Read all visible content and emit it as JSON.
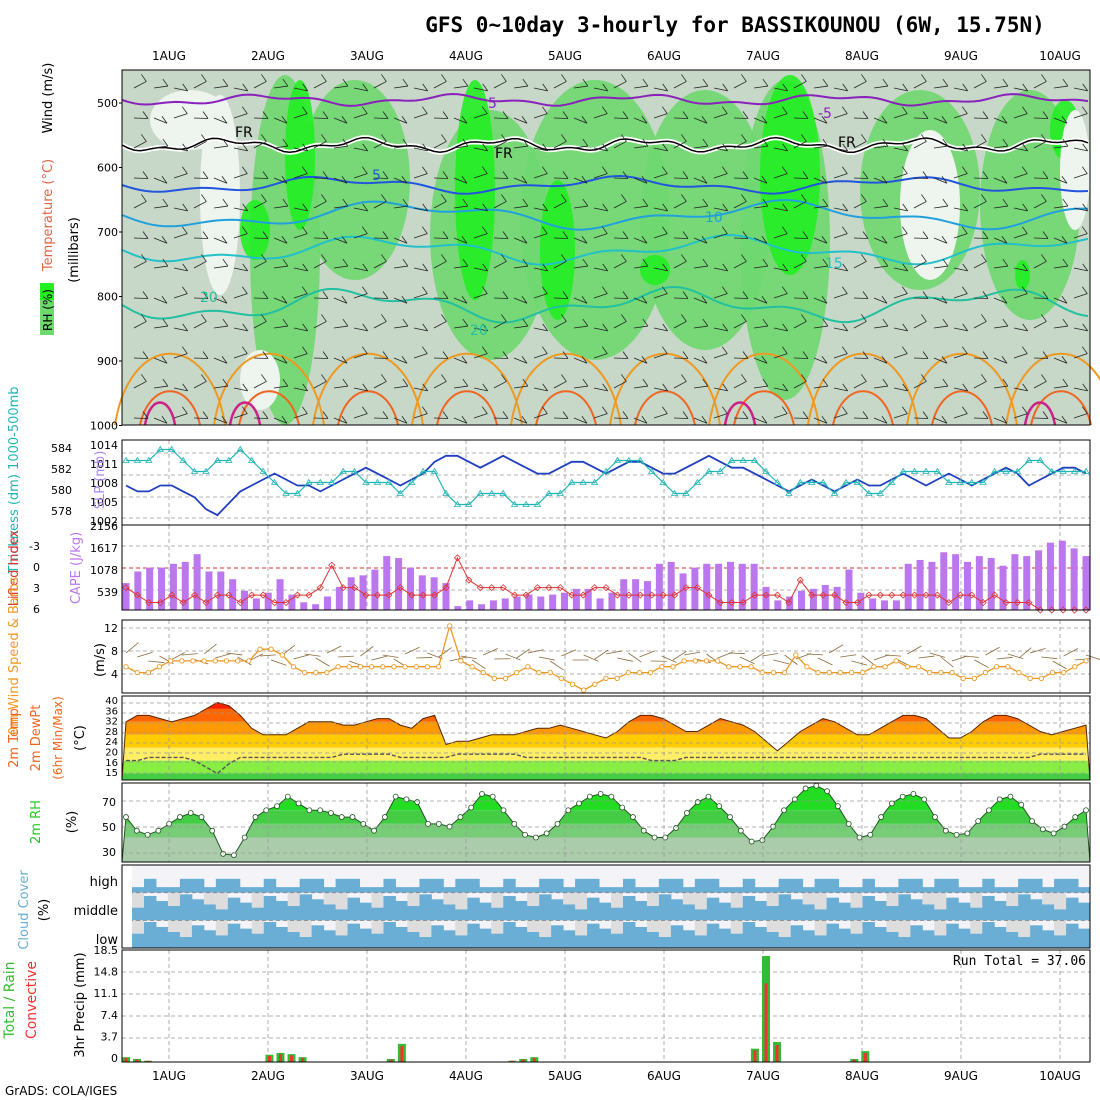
{
  "title": "GFS 0~10day 3-hourly for BASSIKOUNOU (6W, 15.75N)",
  "credit": "GrADS: COLA/IGES",
  "dates": [
    "1AUG",
    "2AUG",
    "3AUG",
    "4AUG",
    "5AUG",
    "6AUG",
    "7AUG",
    "8AUG",
    "9AUG",
    "10AUG"
  ],
  "colors": {
    "rh_light": "#c8d8c8",
    "rh_mid": "#6fd86f",
    "rh_high": "#22ee22",
    "wind_violet": "#8822bb",
    "freezing": "#000000",
    "t5": "#2255dd",
    "t10": "#22a0dd",
    "t15": "#22c0c8",
    "t20": "#22c0a0",
    "t25": "#ee9922",
    "t30": "#ee6622",
    "t35": "#cc2288",
    "slp": "#1f3fbf",
    "thickness": "#22b5b5",
    "lifted": "#dd3333",
    "cape": "#bb77ee",
    "wind10": "#ee9922",
    "barbs": "#8a6a3a",
    "temp_fill": [
      "#ff2200",
      "#ff6600",
      "#ff9900",
      "#ffcc00",
      "#ffee66",
      "#88ee44",
      "#44cc44"
    ],
    "rh2m": "#22cc22",
    "cloud": "#6aaed6",
    "cloud_clear": "#dddddd",
    "precip_total": "#33bb33",
    "precip_conv": "#ee3333"
  },
  "panels": {
    "upper_air": {
      "ylabel_parts": [
        "RH (%)",
        "Temperature (°C)",
        "Wind (m/s)"
      ],
      "ylabel_units": "(millibars)",
      "yticks": [
        "500",
        "600",
        "700",
        "800",
        "900",
        "1000"
      ],
      "contour_labels": [
        "5",
        "FR",
        "FR",
        "FR",
        "5",
        "10",
        "15",
        "20",
        "20",
        "-5"
      ]
    },
    "slp": {
      "ylabel_left": "Thickness (dm) 1000-500mb",
      "ylabel_right": "SLP (mb)",
      "ticks_left": [
        "584",
        "582",
        "580",
        "578"
      ],
      "ticks_right": [
        "1014",
        "1011",
        "1008",
        "1005",
        "1002"
      ]
    },
    "cape": {
      "ylabel_left": "Lifted Index",
      "ylabel_right": "CAPE (J/kg)",
      "ticks_left": [
        "-3",
        "0",
        "3",
        "6"
      ],
      "ticks_right": [
        "2156",
        "1617",
        "1078",
        "539"
      ]
    },
    "wind10": {
      "ylabel": "10m Wind Speed & Barbs",
      "units": "(m/s)",
      "ticks": [
        "12",
        "8",
        "4"
      ]
    },
    "temp2m": {
      "ylabel": "2m Temp 2m DewPt (6hr Min/Max)",
      "units": "(°C)",
      "ticks": [
        "40",
        "36",
        "32",
        "28",
        "24",
        "20",
        "16",
        "15"
      ]
    },
    "rh2m": {
      "ylabel": "2m RH",
      "units": "(%)",
      "ticks": [
        "70",
        "50",
        "30"
      ]
    },
    "cloud": {
      "ylabel": "Cloud Cover",
      "units": "(%)",
      "levels": [
        "high",
        "middle",
        "low"
      ]
    },
    "precip": {
      "ylabel_left": "Total / Rain",
      "ylabel_conv": "Convective",
      "ylabel": "3hr Precip (mm)",
      "run_total": "Run Total = 37.06",
      "ticks": [
        "18.5",
        "14.8",
        "11.1",
        "7.4",
        "3.7",
        "0"
      ]
    }
  },
  "chart_data": [
    {
      "type": "line",
      "title": "SLP (mb) and 1000-500mb Thickness (dm)",
      "x": "3-hourly steps, 1AUG-10AUG",
      "ylim_slp": [
        1002,
        1015
      ],
      "ylim_thickness": [
        577.5,
        584.5
      ],
      "series": [
        {
          "name": "SLP (mb)",
          "values": [
            1008,
            1007,
            1007,
            1008,
            1008,
            1007,
            1006,
            1004,
            1003,
            1005,
            1007,
            1008,
            1009,
            1010,
            1009,
            1008,
            1008,
            1007,
            1008,
            1009,
            1010,
            1011,
            1010,
            1009,
            1008,
            1009,
            1010,
            1012,
            1013,
            1013,
            1012,
            1011,
            1012,
            1013,
            1012,
            1011,
            1010,
            1010,
            1011,
            1012,
            1012,
            1011,
            1010,
            1011,
            1012,
            1012,
            1011,
            1010,
            1010,
            1011,
            1012,
            1013,
            1012,
            1011,
            1011,
            1010,
            1009,
            1008,
            1007,
            1008,
            1009,
            1008,
            1007,
            1008,
            1009,
            1008,
            1008,
            1009,
            1010,
            1009,
            1008,
            1009,
            1010,
            1009,
            1008,
            1009,
            1010,
            1011,
            1010,
            1008,
            1009,
            1010,
            1011,
            1011,
            1010
          ]
        },
        {
          "name": "Thickness (dm)",
          "values": [
            583,
            583,
            583,
            584,
            584,
            583,
            582,
            582,
            583,
            583,
            584,
            583,
            582,
            581,
            580,
            580,
            581,
            581,
            581,
            582,
            582,
            581,
            581,
            581,
            580,
            581,
            582,
            582,
            580,
            579,
            579,
            580,
            580,
            580,
            579,
            579,
            579,
            580,
            580,
            581,
            581,
            581,
            582,
            583,
            583,
            583,
            582,
            581,
            580,
            580,
            581,
            582,
            582,
            583,
            583,
            583,
            582,
            581,
            580,
            581,
            581,
            581,
            580,
            581,
            581,
            580,
            580,
            581,
            582,
            582,
            582,
            582,
            581,
            581,
            581,
            581,
            582,
            582,
            582,
            583,
            583,
            582,
            582,
            582,
            582
          ]
        }
      ]
    },
    {
      "type": "bar",
      "title": "CAPE (J/kg) and Lifted Index",
      "ylim_cape": [
        0,
        2156
      ],
      "ylim_li": [
        6,
        -5
      ],
      "series": [
        {
          "name": "CAPE (J/kg)",
          "values": [
            700,
            1000,
            1100,
            1100,
            1200,
            1250,
            1450,
            1000,
            1000,
            800,
            500,
            300,
            450,
            800,
            400,
            200,
            150,
            350,
            600,
            850,
            900,
            1050,
            1400,
            1350,
            1100,
            900,
            850,
            700,
            100,
            250,
            150,
            250,
            300,
            350,
            400,
            350,
            400,
            450,
            550,
            550,
            300,
            450,
            800,
            800,
            750,
            1200,
            1250,
            950,
            1100,
            1200,
            1200,
            1250,
            1200,
            1200,
            600,
            250,
            350,
            500,
            550,
            650,
            600,
            1050,
            450,
            300,
            250,
            250,
            1200,
            1300,
            1250,
            1500,
            1450,
            1250,
            1400,
            1350,
            1150,
            1450,
            1400,
            1550,
            1750,
            1800,
            1600,
            1400
          ]
        },
        {
          "name": "Lifted Index",
          "values": [
            -2,
            -3,
            -4,
            -4,
            -3,
            -4,
            -3,
            -4,
            -3,
            -3,
            -4,
            -3,
            -3,
            -4,
            -4,
            -3,
            -3,
            -2,
            1,
            -2,
            -2,
            -3,
            -3,
            -3,
            -2,
            -3,
            -3,
            -3,
            -2,
            2,
            -1,
            -2,
            -2,
            -2,
            -3,
            -3,
            -2,
            -2,
            -2,
            -3,
            -3,
            -2,
            -2,
            -3,
            -3,
            -3,
            -3,
            -3,
            -3,
            -2,
            -2,
            -3,
            -4,
            -4,
            -4,
            -3,
            -3,
            -3,
            -4,
            -1,
            -3,
            -3,
            -3,
            -4,
            -4,
            -3,
            -3,
            -3,
            -3,
            -3,
            -3,
            -3,
            -4,
            -3,
            -3,
            -4,
            -3,
            -4,
            -4,
            -4,
            -5,
            -5,
            -5,
            -5,
            -5
          ]
        }
      ]
    },
    {
      "type": "line",
      "title": "10m Wind Speed (m/s)",
      "ylim": [
        1.5,
        14
      ],
      "values": [
        6,
        5,
        5,
        6,
        7,
        7,
        7,
        7,
        7,
        7,
        7,
        7,
        9,
        9,
        8,
        6,
        5,
        5,
        5,
        6,
        6,
        6,
        6,
        6,
        6,
        6,
        6,
        6,
        6,
        13,
        7,
        6,
        5,
        4,
        4,
        5,
        6,
        5,
        5,
        4,
        3,
        2,
        3,
        4,
        4,
        5,
        5,
        5,
        6,
        6,
        7,
        7,
        7,
        7,
        6,
        6,
        6,
        5,
        5,
        5,
        8,
        6,
        5,
        5,
        5,
        5,
        5,
        6,
        6,
        7,
        6,
        6,
        5,
        5,
        5,
        4,
        4,
        5,
        6,
        6,
        5,
        4,
        4,
        5,
        5,
        6,
        7
      ]
    },
    {
      "type": "area",
      "title": "2m Temp and DewPt (°C)",
      "ylim": [
        14,
        40
      ],
      "series": [
        {
          "name": "2m Temp",
          "values": [
            32,
            34,
            34,
            33,
            32,
            33,
            34,
            36,
            38,
            37,
            34,
            30,
            28,
            28,
            28,
            30,
            32,
            32,
            32,
            31,
            31,
            32,
            33,
            33,
            31,
            30,
            33,
            34,
            25,
            26,
            26,
            27,
            28,
            28,
            28,
            29,
            30,
            30,
            31,
            30,
            29,
            28,
            27,
            29,
            32,
            34,
            34,
            33,
            31,
            29,
            29,
            31,
            33,
            32,
            31,
            29,
            26,
            23,
            26,
            29,
            31,
            33,
            32,
            30,
            28,
            28,
            30,
            32,
            34,
            34,
            33,
            30,
            27,
            27,
            29,
            32,
            34,
            34,
            33,
            31,
            29,
            28,
            29,
            30,
            31
          ]
        },
        {
          "name": "2m DewPt",
          "values": [
            20,
            20,
            21,
            21,
            21,
            21,
            20,
            18,
            16,
            19,
            21,
            21,
            21,
            21,
            21,
            21,
            21,
            21,
            21,
            22,
            22,
            22,
            22,
            22,
            21,
            21,
            21,
            21,
            21,
            22,
            22,
            22,
            22,
            22,
            22,
            21,
            21,
            21,
            21,
            21,
            21,
            21,
            21,
            21,
            21,
            21,
            20,
            20,
            20,
            21,
            21,
            21,
            21,
            21,
            21,
            21,
            21,
            21,
            21,
            21,
            21,
            21,
            21,
            21,
            21,
            21,
            21,
            21,
            21,
            21,
            21,
            21,
            21,
            21,
            21,
            21,
            21,
            21,
            21,
            21,
            22,
            22,
            22,
            22,
            22
          ]
        }
      ]
    },
    {
      "type": "area",
      "title": "2m RH (%)",
      "ylim": [
        22,
        80
      ],
      "values": [
        55,
        45,
        42,
        45,
        50,
        55,
        58,
        55,
        45,
        28,
        27,
        40,
        55,
        60,
        63,
        70,
        65,
        60,
        60,
        58,
        55,
        55,
        50,
        45,
        55,
        70,
        68,
        66,
        50,
        50,
        48,
        55,
        62,
        72,
        70,
        60,
        50,
        42,
        40,
        43,
        50,
        60,
        65,
        70,
        72,
        70,
        62,
        55,
        45,
        40,
        40,
        47,
        58,
        66,
        70,
        63,
        55,
        45,
        37,
        38,
        48,
        60,
        68,
        76,
        78,
        74,
        63,
        50,
        40,
        42,
        55,
        65,
        70,
        72,
        68,
        55,
        45,
        42,
        43,
        52,
        60,
        68,
        70,
        64,
        52,
        46,
        43,
        48,
        55,
        60
      ]
    },
    {
      "type": "bar",
      "title": "3hr Precip (mm)",
      "ylim": [
        0,
        18.5
      ],
      "series": [
        {
          "name": "Total / Rain",
          "values": [
            0.8,
            0.5,
            0.2,
            0,
            0,
            0,
            0,
            0,
            0,
            0,
            0,
            0,
            0,
            1.2,
            1.5,
            1.3,
            0.8,
            0,
            0,
            0,
            0,
            0,
            0,
            0,
            0.5,
            3.0,
            0,
            0,
            0,
            0,
            0,
            0,
            0,
            0,
            0,
            0.2,
            0.5,
            0.8,
            0,
            0,
            0,
            0,
            0,
            0,
            0,
            0,
            0,
            0,
            0,
            0,
            0,
            0,
            0,
            0,
            0,
            0,
            0,
            2.2,
            17.5,
            3.3,
            0,
            0,
            0,
            0,
            0,
            0,
            0.5,
            1.8,
            0,
            0,
            0,
            0,
            0,
            0,
            0,
            0,
            0,
            0,
            0,
            0,
            0,
            0,
            0,
            0,
            0,
            0,
            0,
            0
          ]
        },
        {
          "name": "Convective",
          "values": [
            0.7,
            0.4,
            0.2,
            0,
            0,
            0,
            0,
            0,
            0,
            0,
            0,
            0,
            0,
            1.0,
            1.3,
            1.1,
            0.7,
            0,
            0,
            0,
            0,
            0,
            0,
            0,
            0.4,
            2.6,
            0,
            0,
            0,
            0,
            0,
            0,
            0,
            0,
            0,
            0.2,
            0.4,
            0.7,
            0,
            0,
            0,
            0,
            0,
            0,
            0,
            0,
            0,
            0,
            0,
            0,
            0,
            0,
            0,
            0,
            0,
            0,
            0,
            1.9,
            13.0,
            2.8,
            0,
            0,
            0,
            0,
            0,
            0,
            0.4,
            1.5,
            0,
            0,
            0,
            0,
            0,
            0,
            0,
            0,
            0,
            0,
            0,
            0,
            0,
            0,
            0,
            0,
            0,
            0,
            0
          ]
        }
      ]
    }
  ]
}
